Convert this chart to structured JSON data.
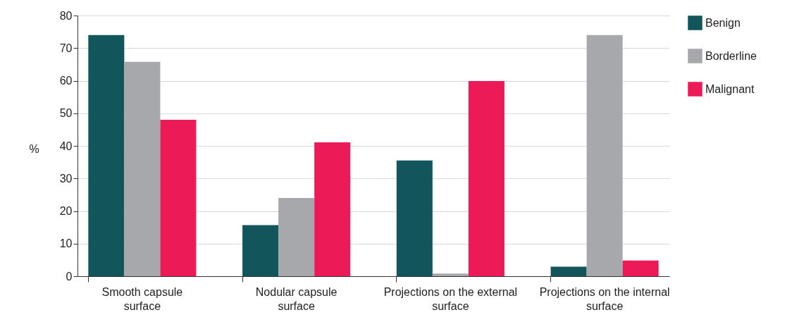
{
  "chart_data": {
    "type": "bar",
    "ylabel": "%",
    "categories": [
      "Smooth capsule surface",
      "Nodular capsule surface",
      "Projections on the external surface",
      "Projections on the internal surface"
    ],
    "series": [
      {
        "name": "Benign",
        "color": "#12565c",
        "values": [
          74,
          15.7,
          35.5,
          2.9
        ]
      },
      {
        "name": "Borderline",
        "color": "#a7a8ab",
        "values": [
          65.8,
          24,
          0.8,
          74
        ]
      },
      {
        "name": "Malignant",
        "color": "#ec1b58",
        "values": [
          48,
          41.1,
          59.9,
          4.8
        ]
      }
    ],
    "ylim": [
      0,
      80
    ],
    "yticks": [
      0,
      10,
      20,
      30,
      40,
      50,
      60,
      70,
      80
    ],
    "grid": "y",
    "legend": "right"
  }
}
